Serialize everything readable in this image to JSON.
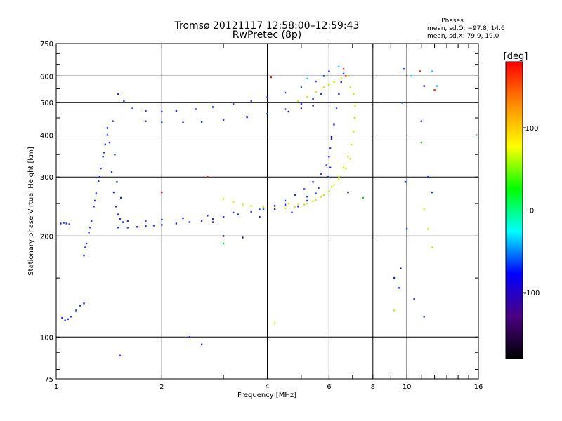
{
  "chart_data": {
    "type": "scatter",
    "title": "Tromsø 20121117 12:58:00–12:59:43",
    "subtitle": "RwPretec (8p)",
    "xlabel": "Frequency [MHz]",
    "ylabel": "Stationary phase Virtual Height [km]",
    "x_scale": "log",
    "y_scale": "log",
    "xlim": [
      1,
      16
    ],
    "ylim": [
      75,
      750
    ],
    "x_ticks": [
      1,
      2,
      4,
      6,
      8,
      10,
      16
    ],
    "y_ticks": [
      75,
      100,
      200,
      300,
      400,
      500,
      600,
      750
    ],
    "x_gridlines": [
      2,
      4,
      6,
      8,
      10
    ],
    "y_gridlines": [
      100,
      200,
      300,
      400,
      500,
      600
    ],
    "grid": true,
    "phases_box": {
      "heading": "Phases",
      "line_o": "mean, sd,O: −97.8, 14.6",
      "line_x": "mean, sd,X:  79.9, 19.0"
    },
    "colorbar": {
      "unit": "[deg]",
      "range": [
        -180,
        180
      ],
      "ticks": [
        100,
        0,
        -100
      ],
      "stops": [
        "#ff0000",
        "#ff8c00",
        "#ffff00",
        "#00ff00",
        "#00ffff",
        "#0000ff",
        "#4b0082",
        "#000000"
      ]
    },
    "series": [
      {
        "color": "#1e32e6",
        "points": [
          [
            1.03,
            218
          ],
          [
            1.05,
            219
          ],
          [
            1.07,
            218
          ],
          [
            1.09,
            217
          ],
          [
            1.04,
            114
          ],
          [
            1.06,
            112
          ],
          [
            1.08,
            113
          ],
          [
            1.1,
            115
          ],
          [
            1.14,
            120
          ],
          [
            1.17,
            124
          ],
          [
            1.2,
            126
          ],
          [
            1.2,
            175
          ],
          [
            1.22,
            190
          ],
          [
            1.24,
            205
          ],
          [
            1.26,
            222
          ],
          [
            1.28,
            245
          ],
          [
            1.3,
            268
          ],
          [
            1.32,
            292
          ],
          [
            1.34,
            318
          ],
          [
            1.36,
            345
          ],
          [
            1.38,
            375
          ],
          [
            1.4,
            400
          ],
          [
            1.21,
            185
          ],
          [
            1.25,
            212
          ],
          [
            1.29,
            255
          ],
          [
            1.33,
            300
          ],
          [
            1.37,
            355
          ],
          [
            1.44,
            310
          ],
          [
            1.46,
            270
          ],
          [
            1.48,
            245
          ],
          [
            1.5,
            232
          ],
          [
            1.52,
            225
          ],
          [
            1.55,
            220
          ],
          [
            1.42,
            380
          ],
          [
            1.4,
            420
          ],
          [
            1.45,
            440
          ],
          [
            1.47,
            350
          ],
          [
            1.49,
            290
          ],
          [
            1.53,
            260
          ],
          [
            1.5,
            212
          ],
          [
            1.6,
            212
          ],
          [
            1.7,
            213
          ],
          [
            1.8,
            214
          ],
          [
            1.9,
            215
          ],
          [
            2.0,
            216
          ],
          [
            2.2,
            218
          ],
          [
            2.4,
            220
          ],
          [
            2.6,
            222
          ],
          [
            2.8,
            225
          ],
          [
            3.0,
            228
          ],
          [
            3.3,
            232
          ],
          [
            3.6,
            236
          ],
          [
            3.9,
            240
          ],
          [
            4.2,
            246
          ],
          [
            4.5,
            255
          ],
          [
            4.8,
            265
          ],
          [
            5.1,
            276
          ],
          [
            5.4,
            290
          ],
          [
            5.7,
            306
          ],
          [
            5.9,
            325
          ],
          [
            6.0,
            345
          ],
          [
            6.05,
            365
          ],
          [
            6.1,
            390
          ],
          [
            6.2,
            430
          ],
          [
            6.3,
            480
          ],
          [
            6.4,
            530
          ],
          [
            6.5,
            575
          ],
          [
            6.6,
            610
          ],
          [
            1.6,
            222
          ],
          [
            1.8,
            222
          ],
          [
            2.0,
            224
          ],
          [
            2.3,
            226
          ],
          [
            2.7,
            230
          ],
          [
            3.2,
            235
          ],
          [
            3.8,
            240
          ],
          [
            4.5,
            248
          ],
          [
            5.2,
            262
          ],
          [
            5.6,
            278
          ],
          [
            5.95,
            300
          ],
          [
            6.05,
            320
          ],
          [
            1.5,
            530
          ],
          [
            1.56,
            505
          ],
          [
            1.65,
            480
          ],
          [
            1.8,
            472
          ],
          [
            2.0,
            470
          ],
          [
            2.2,
            472
          ],
          [
            2.5,
            478
          ],
          [
            2.8,
            485
          ],
          [
            3.2,
            495
          ],
          [
            3.6,
            505
          ],
          [
            4.0,
            518
          ],
          [
            4.5,
            535
          ],
          [
            5.0,
            555
          ],
          [
            5.5,
            578
          ],
          [
            5.8,
            600
          ],
          [
            6.0,
            620
          ],
          [
            1.8,
            440
          ],
          [
            2.0,
            436
          ],
          [
            2.3,
            436
          ],
          [
            2.6,
            438
          ],
          [
            3.0,
            443
          ],
          [
            3.5,
            452
          ],
          [
            4.0,
            463
          ],
          [
            4.5,
            478
          ],
          [
            5.0,
            495
          ],
          [
            5.4,
            512
          ],
          [
            5.7,
            530
          ],
          [
            4.7,
            235
          ],
          [
            4.9,
            245
          ],
          [
            5.2,
            255
          ],
          [
            5.5,
            268
          ],
          [
            1.52,
            88
          ],
          [
            2.6,
            95
          ],
          [
            2.4,
            100
          ],
          [
            9.2,
            150
          ],
          [
            9.5,
            140
          ],
          [
            9.8,
            630
          ],
          [
            9.7,
            500
          ],
          [
            11.0,
            440
          ],
          [
            11.2,
            560
          ],
          [
            11.5,
            300
          ],
          [
            11.8,
            270
          ],
          [
            10.0,
            210
          ],
          [
            9.9,
            290
          ],
          [
            10.5,
            130
          ],
          [
            11.2,
            115
          ]
        ]
      },
      {
        "color": "#c8e61e",
        "points": [
          [
            3.0,
            258
          ],
          [
            3.2,
            252
          ],
          [
            3.4,
            248
          ],
          [
            3.6,
            246
          ],
          [
            3.9,
            244
          ],
          [
            4.2,
            242
          ],
          [
            4.5,
            242
          ],
          [
            4.8,
            244
          ],
          [
            5.1,
            248
          ],
          [
            5.4,
            254
          ],
          [
            5.7,
            262
          ],
          [
            6.0,
            272
          ],
          [
            6.2,
            284
          ],
          [
            6.4,
            300
          ],
          [
            6.6,
            320
          ],
          [
            6.8,
            345
          ],
          [
            6.95,
            375
          ],
          [
            7.05,
            410
          ],
          [
            7.1,
            450
          ],
          [
            7.12,
            490
          ],
          [
            7.05,
            530
          ],
          [
            6.9,
            555
          ],
          [
            4.9,
            505
          ],
          [
            5.2,
            520
          ],
          [
            5.5,
            538
          ],
          [
            5.8,
            555
          ],
          [
            6.0,
            565
          ],
          [
            6.2,
            575
          ],
          [
            6.5,
            590
          ],
          [
            6.8,
            600
          ],
          [
            4.6,
            250
          ],
          [
            4.9,
            248
          ],
          [
            5.2,
            250
          ],
          [
            5.5,
            256
          ],
          [
            5.8,
            265
          ],
          [
            6.1,
            280
          ],
          [
            6.4,
            295
          ],
          [
            6.7,
            318
          ],
          [
            6.9,
            340
          ],
          [
            11.2,
            240
          ],
          [
            11.5,
            210
          ],
          [
            11.8,
            185
          ],
          [
            9.2,
            120
          ],
          [
            4.2,
            110
          ]
        ]
      },
      {
        "color": "#2e0a78",
        "points": [
          [
            3.0,
            200
          ],
          [
            3.4,
            198
          ],
          [
            2.8,
            220
          ],
          [
            3.8,
            228
          ],
          [
            4.2,
            240
          ],
          [
            4.6,
            470
          ],
          [
            5.0,
            480
          ],
          [
            5.4,
            490
          ],
          [
            6.1,
            395
          ],
          [
            6.8,
            270
          ],
          [
            9.6,
            160
          ]
        ]
      },
      {
        "color": "#e62814",
        "points": [
          [
            6.6,
            630
          ],
          [
            6.7,
            600
          ],
          [
            2.0,
            270
          ],
          [
            4.1,
            595
          ],
          [
            10.9,
            620
          ],
          [
            12.0,
            545
          ],
          [
            2.7,
            300
          ]
        ]
      },
      {
        "color": "#28c8ff",
        "points": [
          [
            6.4,
            640
          ],
          [
            11.8,
            620
          ],
          [
            12.2,
            560
          ],
          [
            5.2,
            590
          ],
          [
            10.3,
            600
          ]
        ]
      },
      {
        "color": "#32c832",
        "points": [
          [
            7.5,
            260
          ],
          [
            11.0,
            380
          ],
          [
            15.8,
            400
          ],
          [
            3.0,
            190
          ]
        ]
      }
    ]
  }
}
